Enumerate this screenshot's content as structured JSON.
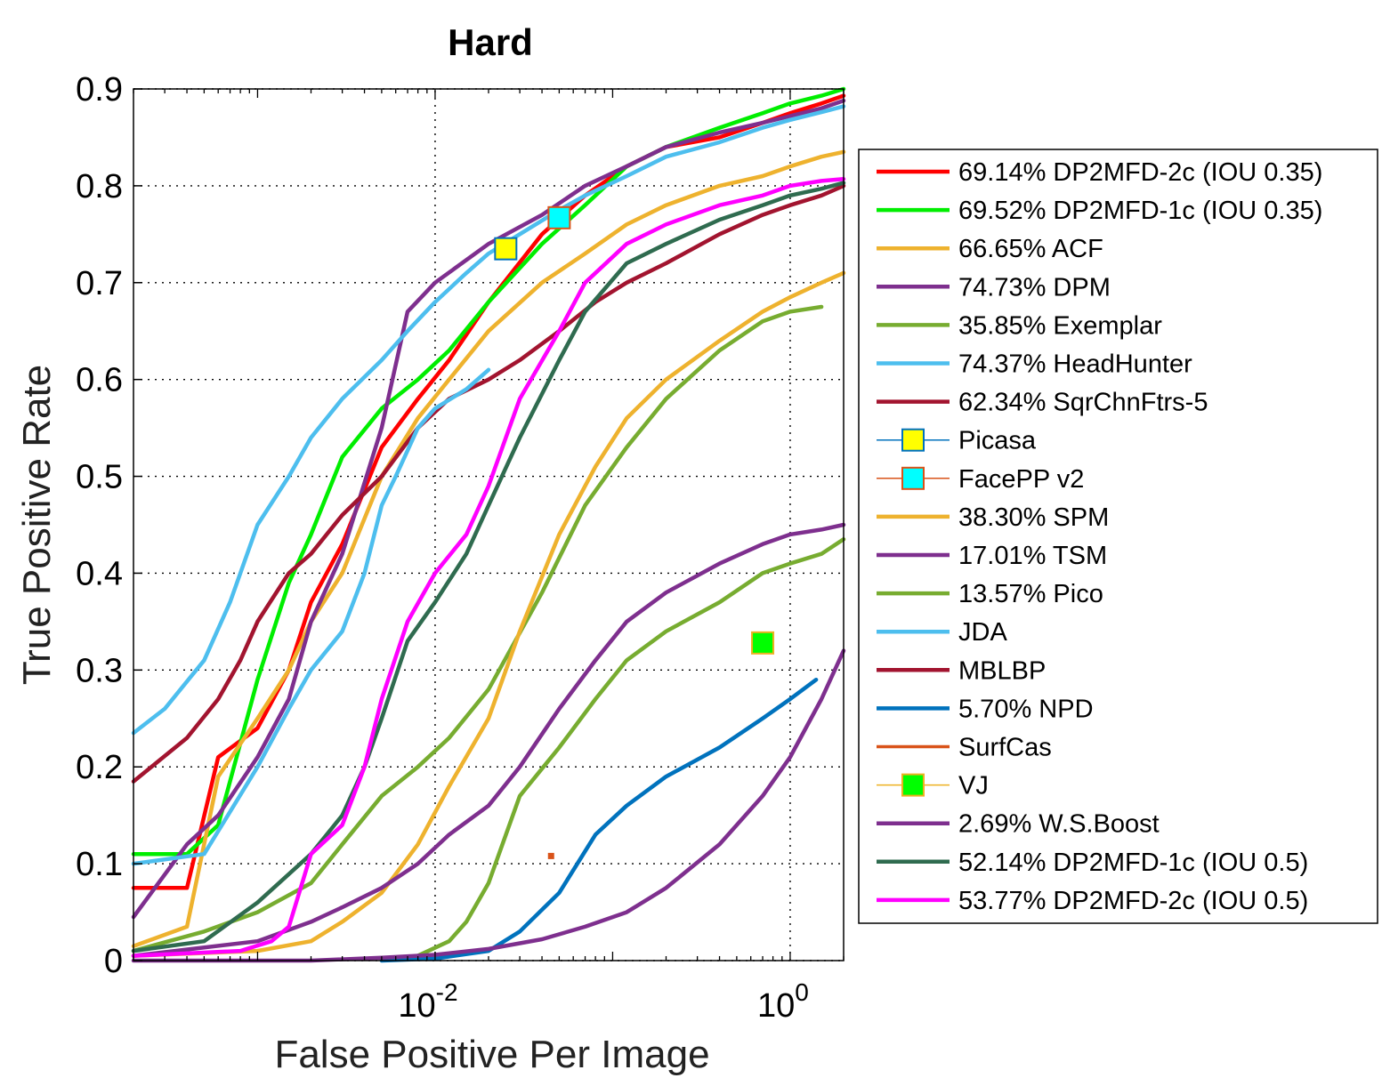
{
  "chart_data": {
    "type": "line",
    "title": "Hard",
    "xlabel": "False Positive Per Image",
    "ylabel": "True Positive Rate",
    "xscale": "log",
    "xlim": [
      0.0002,
      2.0
    ],
    "ylim": [
      0,
      0.9
    ],
    "grid": true,
    "legend_position": "right",
    "y_ticks": [
      "0",
      "0.1",
      "0.2",
      "0.3",
      "0.4",
      "0.5",
      "0.6",
      "0.7",
      "0.8",
      "0.9"
    ],
    "x_ticks": [
      {
        "base": "10",
        "exp": "-2",
        "value": 0.01
      },
      {
        "base": "10",
        "exp": "0",
        "value": 1
      }
    ],
    "series": [
      {
        "name": "69.14% DP2MFD-2c (IOU 0.35)",
        "color": "#ff0000",
        "kind": "line",
        "x": [
          0.0002,
          0.0004,
          0.0006,
          0.001,
          0.0015,
          0.002,
          0.003,
          0.005,
          0.008,
          0.012,
          0.02,
          0.04,
          0.07,
          0.12,
          0.2,
          0.4,
          0.7,
          1.0,
          1.5,
          2.0
        ],
        "y": [
          0.075,
          0.075,
          0.21,
          0.24,
          0.3,
          0.37,
          0.43,
          0.53,
          0.58,
          0.62,
          0.68,
          0.75,
          0.79,
          0.82,
          0.84,
          0.85,
          0.865,
          0.875,
          0.885,
          0.893
        ]
      },
      {
        "name": "69.52% DP2MFD-1c (IOU 0.35)",
        "color": "#00ee00",
        "kind": "line",
        "x": [
          0.0002,
          0.0004,
          0.0006,
          0.001,
          0.0015,
          0.002,
          0.003,
          0.005,
          0.008,
          0.012,
          0.02,
          0.04,
          0.07,
          0.12,
          0.2,
          0.4,
          0.7,
          1.0,
          1.5,
          2.0
        ],
        "y": [
          0.11,
          0.11,
          0.14,
          0.29,
          0.39,
          0.44,
          0.52,
          0.57,
          0.6,
          0.63,
          0.68,
          0.74,
          0.78,
          0.82,
          0.84,
          0.86,
          0.875,
          0.885,
          0.893,
          0.9
        ]
      },
      {
        "name": "66.65% ACF",
        "color": "#eeb22e",
        "kind": "line",
        "x": [
          0.0002,
          0.0004,
          0.0006,
          0.001,
          0.0015,
          0.002,
          0.003,
          0.005,
          0.008,
          0.012,
          0.02,
          0.04,
          0.07,
          0.12,
          0.2,
          0.4,
          0.7,
          1.0,
          1.5,
          2.0
        ],
        "y": [
          0.015,
          0.035,
          0.19,
          0.25,
          0.3,
          0.35,
          0.4,
          0.5,
          0.56,
          0.6,
          0.65,
          0.7,
          0.73,
          0.76,
          0.78,
          0.8,
          0.81,
          0.82,
          0.83,
          0.835
        ]
      },
      {
        "name": "74.73% DPM",
        "color": "#7e2f8e",
        "kind": "line",
        "x": [
          0.0002,
          0.0004,
          0.0006,
          0.001,
          0.0015,
          0.002,
          0.003,
          0.005,
          0.007,
          0.01,
          0.02,
          0.04,
          0.07,
          0.12,
          0.2,
          0.4,
          0.7,
          1.0,
          1.5,
          2.0
        ],
        "y": [
          0.045,
          0.12,
          0.15,
          0.21,
          0.27,
          0.35,
          0.42,
          0.55,
          0.67,
          0.7,
          0.74,
          0.77,
          0.8,
          0.82,
          0.84,
          0.855,
          0.865,
          0.872,
          0.88,
          0.888
        ]
      },
      {
        "name": "35.85% Exemplar",
        "color": "#77ac30",
        "kind": "line",
        "x": [
          0.0002,
          0.0005,
          0.001,
          0.002,
          0.003,
          0.005,
          0.008,
          0.012,
          0.02,
          0.04,
          0.07,
          0.12,
          0.2,
          0.4,
          0.7,
          1.0,
          1.5
        ],
        "y": [
          0.01,
          0.03,
          0.05,
          0.08,
          0.12,
          0.17,
          0.2,
          0.23,
          0.28,
          0.38,
          0.47,
          0.53,
          0.58,
          0.63,
          0.66,
          0.67,
          0.675
        ]
      },
      {
        "name": "74.37% HeadHunter",
        "color": "#4dbeee",
        "kind": "line",
        "x": [
          0.0002,
          0.0003,
          0.0005,
          0.0007,
          0.001,
          0.0015,
          0.002,
          0.003,
          0.005,
          0.007,
          0.01,
          0.015,
          0.02,
          0.03,
          0.05,
          0.07,
          0.12,
          0.2,
          0.4,
          0.7,
          1.0,
          1.5,
          2.0
        ],
        "y": [
          0.235,
          0.26,
          0.31,
          0.37,
          0.45,
          0.5,
          0.54,
          0.58,
          0.62,
          0.65,
          0.68,
          0.71,
          0.73,
          0.75,
          0.775,
          0.79,
          0.81,
          0.83,
          0.845,
          0.86,
          0.868,
          0.876,
          0.882
        ]
      },
      {
        "name": "62.34% SqrChnFtrs-5",
        "color": "#a2142f",
        "kind": "line",
        "x": [
          0.0002,
          0.0004,
          0.0006,
          0.0008,
          0.001,
          0.0015,
          0.002,
          0.003,
          0.005,
          0.008,
          0.012,
          0.02,
          0.03,
          0.05,
          0.08,
          0.12,
          0.2,
          0.4,
          0.7,
          1.0,
          1.5,
          2.0
        ],
        "y": [
          0.185,
          0.23,
          0.27,
          0.31,
          0.35,
          0.4,
          0.42,
          0.46,
          0.5,
          0.55,
          0.58,
          0.6,
          0.62,
          0.65,
          0.68,
          0.7,
          0.72,
          0.75,
          0.77,
          0.78,
          0.79,
          0.8
        ]
      },
      {
        "name": "Picasa",
        "color": "#0072bd",
        "fill": "#ffff00",
        "kind": "marker",
        "x": [
          0.025
        ],
        "y": [
          0.735
        ]
      },
      {
        "name": "FacePP v2",
        "color": "#d95319",
        "fill": "#00ffff",
        "kind": "marker",
        "x": [
          0.05
        ],
        "y": [
          0.767
        ]
      },
      {
        "name": "38.30% SPM",
        "color": "#eeb22e",
        "kind": "line",
        "x": [
          0.0002,
          0.001,
          0.002,
          0.003,
          0.005,
          0.008,
          0.012,
          0.02,
          0.03,
          0.05,
          0.08,
          0.12,
          0.2,
          0.4,
          0.7,
          1.0,
          1.5,
          2.0
        ],
        "y": [
          0.005,
          0.01,
          0.02,
          0.04,
          0.07,
          0.12,
          0.18,
          0.25,
          0.34,
          0.44,
          0.51,
          0.56,
          0.6,
          0.64,
          0.67,
          0.685,
          0.7,
          0.71
        ]
      },
      {
        "name": "17.01% TSM",
        "color": "#7e2f8e",
        "kind": "line",
        "x": [
          0.0002,
          0.001,
          0.002,
          0.003,
          0.005,
          0.008,
          0.012,
          0.02,
          0.03,
          0.05,
          0.08,
          0.12,
          0.2,
          0.4,
          0.7,
          1.0,
          1.5,
          2.0
        ],
        "y": [
          0.005,
          0.02,
          0.04,
          0.055,
          0.075,
          0.1,
          0.13,
          0.16,
          0.2,
          0.26,
          0.31,
          0.35,
          0.38,
          0.41,
          0.43,
          0.44,
          0.445,
          0.45
        ]
      },
      {
        "name": "13.57% Pico",
        "color": "#77ac30",
        "kind": "line",
        "x": [
          0.008,
          0.012,
          0.015,
          0.02,
          0.03,
          0.05,
          0.08,
          0.12,
          0.2,
          0.4,
          0.7,
          1.0,
          1.5,
          2.0
        ],
        "y": [
          0.005,
          0.02,
          0.04,
          0.08,
          0.17,
          0.22,
          0.27,
          0.31,
          0.34,
          0.37,
          0.4,
          0.41,
          0.42,
          0.435
        ]
      },
      {
        "name": "JDA",
        "color": "#4dbeee",
        "kind": "line",
        "x": [
          0.0002,
          0.0005,
          0.001,
          0.0015,
          0.002,
          0.003,
          0.004,
          0.005,
          0.006,
          0.008,
          0.01,
          0.015,
          0.02
        ],
        "y": [
          0.1,
          0.11,
          0.2,
          0.26,
          0.3,
          0.34,
          0.4,
          0.47,
          0.5,
          0.55,
          0.57,
          0.59,
          0.61
        ]
      },
      {
        "name": "MBLBP",
        "color": "#a2142f",
        "kind": "line",
        "x": [],
        "y": []
      },
      {
        "name": "5.70% NPD",
        "color": "#0072bd",
        "kind": "line",
        "x": [
          0.005,
          0.01,
          0.02,
          0.03,
          0.05,
          0.08,
          0.12,
          0.2,
          0.4,
          0.7,
          1.0,
          1.4
        ],
        "y": [
          0.0,
          0.002,
          0.01,
          0.03,
          0.07,
          0.13,
          0.16,
          0.19,
          0.22,
          0.25,
          0.27,
          0.29
        ]
      },
      {
        "name": "SurfCas",
        "color": "#d95319",
        "kind": "marker",
        "fill": "#d95319",
        "x": [
          0.045
        ],
        "y": [
          0.108
        ]
      },
      {
        "name": "VJ",
        "color": "#edb120",
        "fill": "#00ff00",
        "kind": "marker",
        "x": [
          0.7
        ],
        "y": [
          0.328
        ]
      },
      {
        "name": "2.69% W.S.Boost",
        "color": "#7e2f8e",
        "kind": "line",
        "x": [
          0.0002,
          0.002,
          0.005,
          0.01,
          0.02,
          0.04,
          0.07,
          0.12,
          0.2,
          0.4,
          0.7,
          1.0,
          1.5,
          2.0
        ],
        "y": [
          0.0,
          0.0,
          0.003,
          0.006,
          0.012,
          0.022,
          0.035,
          0.05,
          0.075,
          0.12,
          0.17,
          0.21,
          0.27,
          0.32
        ]
      },
      {
        "name": "52.14% DP2MFD-1c (IOU 0.5)",
        "color": "#2f6b4f",
        "kind": "line",
        "x": [
          0.0002,
          0.0005,
          0.001,
          0.002,
          0.003,
          0.004,
          0.005,
          0.007,
          0.01,
          0.015,
          0.02,
          0.03,
          0.05,
          0.07,
          0.12,
          0.2,
          0.4,
          0.7,
          1.0,
          1.5,
          2.0
        ],
        "y": [
          0.01,
          0.02,
          0.06,
          0.11,
          0.15,
          0.2,
          0.25,
          0.33,
          0.37,
          0.42,
          0.47,
          0.54,
          0.62,
          0.67,
          0.72,
          0.74,
          0.765,
          0.78,
          0.79,
          0.797,
          0.803
        ]
      },
      {
        "name": "53.77% DP2MFD-2c (IOU 0.5)",
        "color": "#ff00ff",
        "kind": "line",
        "x": [
          0.0002,
          0.0008,
          0.0012,
          0.0015,
          0.002,
          0.003,
          0.004,
          0.005,
          0.007,
          0.01,
          0.015,
          0.02,
          0.03,
          0.05,
          0.07,
          0.12,
          0.2,
          0.4,
          0.7,
          1.0,
          1.5,
          2.0
        ],
        "y": [
          0.005,
          0.01,
          0.02,
          0.035,
          0.11,
          0.14,
          0.2,
          0.27,
          0.35,
          0.4,
          0.44,
          0.49,
          0.58,
          0.65,
          0.7,
          0.74,
          0.76,
          0.78,
          0.79,
          0.8,
          0.805,
          0.807
        ]
      }
    ]
  }
}
